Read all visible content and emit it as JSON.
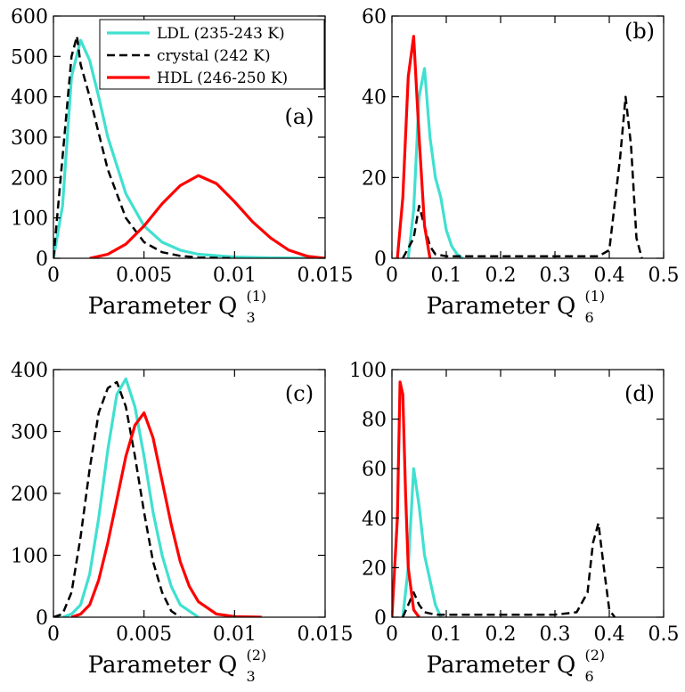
{
  "colors": {
    "ldl": "#40e0d0",
    "crystal": "#000000",
    "hdl": "#ff0000"
  },
  "legend": [
    {
      "key": "ldl",
      "label": "LDL (235-243 K)",
      "style": "solid"
    },
    {
      "key": "crystal",
      "label": "crystal (242 K)",
      "style": "dashed"
    },
    {
      "key": "hdl",
      "label": "HDL (246-250 K)",
      "style": "solid"
    }
  ],
  "chart_data": [
    {
      "type": "line",
      "panel": "(a)",
      "xlabel_main": "Parameter  Q",
      "xlabel_sub": "3",
      "xlabel_sup": "(1)",
      "xlim": [
        0,
        0.015
      ],
      "ylim": [
        0,
        600
      ],
      "xticks": [
        0,
        0.005,
        0.01,
        0.015
      ],
      "xtick_labels": [
        "0",
        "0.005",
        "0.01",
        "0.015"
      ],
      "yticks": [
        0,
        100,
        200,
        300,
        400,
        500,
        600
      ],
      "ytick_labels": [
        "0",
        "100",
        "200",
        "300",
        "400",
        "500",
        "600"
      ],
      "series": [
        {
          "name": "LDL (235-243 K)",
          "color_key": "ldl",
          "style": "solid",
          "x": [
            0,
            0.0005,
            0.001,
            0.0015,
            0.002,
            0.0025,
            0.003,
            0.004,
            0.005,
            0.006,
            0.007,
            0.008,
            0.01,
            0.012,
            0.015
          ],
          "y": [
            0,
            130,
            450,
            540,
            490,
            400,
            300,
            160,
            80,
            40,
            20,
            10,
            3,
            1,
            0
          ]
        },
        {
          "name": "crystal (242 K)",
          "color_key": "crystal",
          "style": "dashed",
          "x": [
            0,
            0.0005,
            0.001,
            0.0013,
            0.0015,
            0.002,
            0.0025,
            0.003,
            0.004,
            0.005,
            0.006,
            0.007,
            0.008,
            0.01
          ],
          "y": [
            0,
            250,
            500,
            550,
            480,
            400,
            310,
            220,
            100,
            40,
            15,
            6,
            2,
            0
          ]
        },
        {
          "name": "HDL (246-250 K)",
          "color_key": "hdl",
          "style": "solid",
          "x": [
            0.002,
            0.003,
            0.004,
            0.005,
            0.006,
            0.007,
            0.008,
            0.009,
            0.01,
            0.011,
            0.012,
            0.013,
            0.014,
            0.015
          ],
          "y": [
            0,
            10,
            35,
            80,
            135,
            180,
            205,
            185,
            140,
            90,
            50,
            20,
            5,
            0
          ]
        }
      ]
    },
    {
      "type": "line",
      "panel": "(b)",
      "xlabel_main": "Parameter  Q",
      "xlabel_sub": "6",
      "xlabel_sup": "(1)",
      "xlim": [
        0,
        0.5
      ],
      "ylim": [
        0,
        60
      ],
      "xticks": [
        0,
        0.1,
        0.2,
        0.3,
        0.4,
        0.5
      ],
      "xtick_labels": [
        "0",
        "0.1",
        "0.2",
        "0.3",
        "0.4",
        "0.5"
      ],
      "yticks": [
        0,
        20,
        40,
        60
      ],
      "ytick_labels": [
        "0",
        "20",
        "40",
        "60"
      ],
      "series": [
        {
          "name": "LDL (235-243 K)",
          "color_key": "ldl",
          "style": "solid",
          "x": [
            0.03,
            0.04,
            0.05,
            0.06,
            0.07,
            0.08,
            0.09,
            0.1,
            0.11,
            0.12,
            0.13
          ],
          "y": [
            0,
            12,
            40,
            47,
            30,
            20,
            15,
            7,
            3,
            1,
            0
          ]
        },
        {
          "name": "crystal (242 K)",
          "color_key": "crystal",
          "style": "dashed",
          "x": [
            0.02,
            0.04,
            0.05,
            0.06,
            0.07,
            0.08,
            0.1,
            0.2,
            0.3,
            0.38,
            0.4,
            0.42,
            0.43,
            0.44,
            0.45,
            0.46
          ],
          "y": [
            0,
            5,
            13,
            8,
            3,
            1,
            0.5,
            0.5,
            0.5,
            0.5,
            2,
            25,
            40,
            28,
            5,
            0
          ]
        },
        {
          "name": "HDL (246-250 K)",
          "color_key": "hdl",
          "style": "solid",
          "x": [
            0.01,
            0.02,
            0.03,
            0.04,
            0.05,
            0.06,
            0.07
          ],
          "y": [
            0,
            15,
            45,
            55,
            30,
            8,
            0
          ]
        }
      ]
    },
    {
      "type": "line",
      "panel": "(c)",
      "xlabel_main": "Parameter  Q",
      "xlabel_sub": "3",
      "xlabel_sup": "(2)",
      "xlim": [
        0,
        0.015
      ],
      "ylim": [
        0,
        400
      ],
      "xticks": [
        0,
        0.005,
        0.01,
        0.015
      ],
      "xtick_labels": [
        "0",
        "0.005",
        "0.01",
        "0.015"
      ],
      "yticks": [
        0,
        100,
        200,
        300,
        400
      ],
      "ytick_labels": [
        "0",
        "100",
        "200",
        "300",
        "400"
      ],
      "series": [
        {
          "name": "LDL (235-243 K)",
          "color_key": "ldl",
          "style": "solid",
          "x": [
            0.0005,
            0.001,
            0.0015,
            0.002,
            0.0025,
            0.003,
            0.0035,
            0.004,
            0.0045,
            0.005,
            0.0055,
            0.006,
            0.0065,
            0.007,
            0.008
          ],
          "y": [
            0,
            5,
            20,
            70,
            160,
            270,
            360,
            385,
            340,
            260,
            170,
            100,
            50,
            20,
            0
          ]
        },
        {
          "name": "crystal (242 K)",
          "color_key": "crystal",
          "style": "dashed",
          "x": [
            0,
            0.0005,
            0.001,
            0.0015,
            0.002,
            0.0025,
            0.003,
            0.0035,
            0.004,
            0.0045,
            0.005,
            0.0055,
            0.006,
            0.0065,
            0.007
          ],
          "y": [
            0,
            5,
            40,
            130,
            240,
            330,
            370,
            380,
            340,
            260,
            170,
            90,
            40,
            10,
            0
          ]
        },
        {
          "name": "HDL (246-250 K)",
          "color_key": "hdl",
          "style": "solid",
          "x": [
            0.001,
            0.0015,
            0.002,
            0.0025,
            0.003,
            0.0035,
            0.004,
            0.0045,
            0.005,
            0.0055,
            0.006,
            0.0065,
            0.007,
            0.0075,
            0.008,
            0.009,
            0.01,
            0.0115
          ],
          "y": [
            0,
            5,
            20,
            60,
            120,
            190,
            260,
            310,
            330,
            290,
            220,
            150,
            90,
            50,
            25,
            5,
            1,
            0
          ]
        }
      ]
    },
    {
      "type": "line",
      "panel": "(d)",
      "xlabel_main": "Parameter  Q",
      "xlabel_sub": "6",
      "xlabel_sup": "(2)",
      "xlim": [
        0,
        0.5
      ],
      "ylim": [
        0,
        100
      ],
      "xticks": [
        0,
        0.1,
        0.2,
        0.3,
        0.4,
        0.5
      ],
      "xtick_labels": [
        "0",
        "0.1",
        "0.2",
        "0.3",
        "0.4",
        "0.5"
      ],
      "yticks": [
        0,
        20,
        40,
        60,
        80,
        100
      ],
      "ytick_labels": [
        "0",
        "20",
        "40",
        "60",
        "80",
        "100"
      ],
      "series": [
        {
          "name": "LDL (235-243 K)",
          "color_key": "ldl",
          "style": "solid",
          "x": [
            0.02,
            0.03,
            0.04,
            0.05,
            0.06,
            0.07,
            0.08,
            0.09
          ],
          "y": [
            0,
            20,
            60,
            45,
            25,
            15,
            5,
            0
          ]
        },
        {
          "name": "crystal (242 K)",
          "color_key": "crystal",
          "style": "dashed",
          "x": [
            0.02,
            0.03,
            0.04,
            0.05,
            0.06,
            0.08,
            0.1,
            0.2,
            0.3,
            0.34,
            0.36,
            0.37,
            0.38,
            0.39,
            0.4,
            0.41
          ],
          "y": [
            0,
            5,
            10,
            5,
            2,
            1,
            1,
            1,
            1,
            2,
            10,
            30,
            38,
            20,
            3,
            0
          ]
        },
        {
          "name": "HDL (246-250 K)",
          "color_key": "hdl",
          "style": "solid",
          "x": [
            0.0,
            0.01,
            0.015,
            0.02,
            0.025,
            0.03,
            0.04,
            0.05
          ],
          "y": [
            0,
            40,
            95,
            90,
            50,
            20,
            3,
            0
          ]
        }
      ]
    }
  ]
}
